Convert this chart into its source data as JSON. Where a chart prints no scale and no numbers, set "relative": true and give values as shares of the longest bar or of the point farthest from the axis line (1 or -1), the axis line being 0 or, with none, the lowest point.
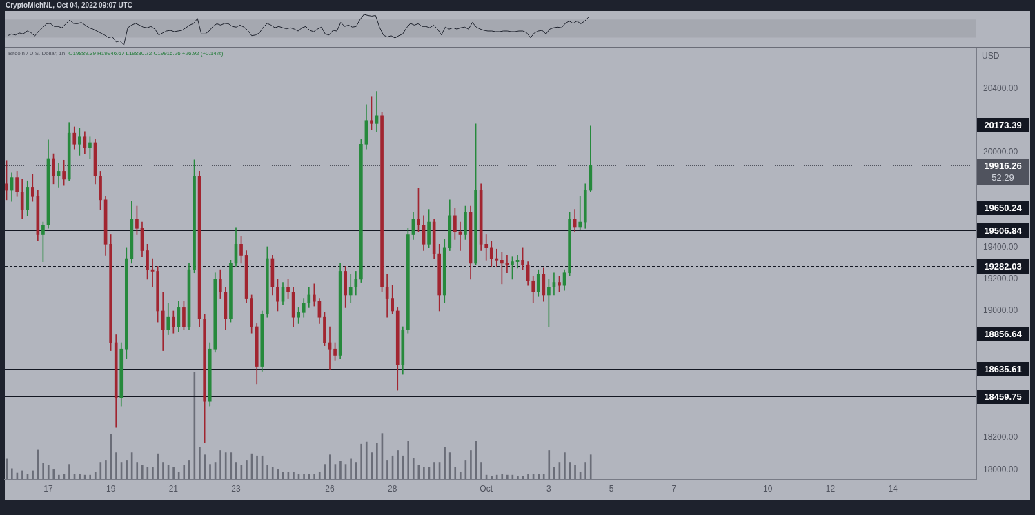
{
  "chart_data": [
    {
      "type": "line",
      "relative": true,
      "color": "#1e222d",
      "categories": [
        null,
        null,
        null,
        null,
        null,
        null,
        null,
        null,
        null,
        null,
        null,
        null,
        null,
        null,
        null,
        null,
        null,
        null,
        null,
        null,
        null,
        null,
        null,
        null,
        null,
        null,
        null,
        null,
        null,
        null,
        null,
        null,
        null,
        null,
        null,
        null,
        null,
        null,
        null,
        null,
        null,
        null,
        null,
        null,
        null,
        null,
        null,
        null,
        null,
        null,
        null,
        null,
        null,
        null,
        null,
        null,
        null,
        null,
        null,
        null,
        null,
        null,
        null,
        null,
        null,
        null,
        null,
        null,
        null,
        null,
        null,
        null,
        null,
        null,
        null,
        null,
        null,
        null,
        null,
        null,
        null,
        null,
        null,
        null,
        null,
        null,
        null,
        null,
        null,
        null,
        null,
        null,
        null,
        null,
        null,
        null,
        null,
        null,
        null,
        null,
        null,
        null,
        null,
        null,
        null,
        null,
        null,
        null,
        null,
        null,
        null,
        null,
        null,
        null,
        null,
        null,
        null,
        null,
        null,
        null,
        null,
        null,
        null,
        null,
        null,
        null,
        null,
        null,
        null,
        null,
        null,
        null,
        null,
        null,
        null,
        null,
        null,
        null,
        null,
        null,
        null,
        null,
        null,
        null,
        null,
        null,
        null,
        null,
        null,
        null,
        null
      ],
      "values": [
        0.36,
        0.41,
        0.38,
        0.44,
        0.41,
        0.5,
        0.45,
        0.35,
        0.5,
        0.6,
        0.72,
        0.73,
        0.64,
        0.64,
        0.6,
        0.72,
        0.83,
        0.73,
        0.72,
        0.76,
        0.68,
        0.6,
        0.56,
        0.5,
        0.44,
        0.38,
        0.3,
        0.33,
        0.17,
        0.2,
        0.08,
        0.6,
        0.68,
        0.73,
        0.68,
        0.62,
        0.6,
        0.64,
        0.56,
        0.38,
        0.44,
        0.5,
        0.52,
        0.48,
        0.5,
        0.52,
        0.6,
        0.68,
        0.73,
        0.88,
        0.41,
        0.41,
        0.5,
        0.64,
        0.72,
        0.68,
        0.73,
        0.72,
        0.64,
        0.62,
        0.68,
        0.62,
        0.52,
        0.36,
        0.38,
        0.44,
        0.62,
        0.73,
        0.68,
        0.6,
        0.64,
        0.6,
        0.57,
        0.6,
        0.56,
        0.5,
        0.6,
        0.64,
        0.52,
        0.48,
        0.56,
        0.62,
        0.41,
        0.38,
        0.52,
        0.5,
        0.76,
        0.64,
        0.68,
        0.62,
        0.64,
        0.85,
        1,
        0.97,
        0.95,
        0.97,
        0.62,
        0.38,
        0.32,
        0.36,
        0.29,
        0.36,
        0.41,
        0.6,
        0.73,
        0.68,
        0.72,
        0.64,
        0.64,
        0.6,
        0.68,
        0.56,
        0.38,
        0.62,
        0.56,
        0.6,
        0.56,
        0.6,
        0.62,
        0.56,
        0.76,
        0.62,
        0.56,
        0.52,
        0.5,
        0.5,
        0.48,
        0.48,
        0.5,
        0.5,
        0.48,
        0.48,
        0.5,
        0.5,
        0.45,
        0.3,
        0.44,
        0.5,
        0.52,
        0.41,
        0.56,
        0.6,
        0.62,
        0.6,
        0.73,
        0.8,
        0.73,
        0.8,
        0.72,
        0.8,
        0.92
      ],
      "bands": [
        {
          "axis": "y",
          "from": 0.3,
          "to": 0.85,
          "color": "#a5a8b0"
        }
      ]
    },
    {
      "type": "candlestick",
      "title": "Bitcoin / U.S. Dollar, 1h",
      "subtitle": "O19889.39 H19946.67 L19880.72 C19916.26 +26.92 (+0.14%)",
      "ylabel": "USD",
      "annotations": [
        "CryptoMichNL, Oct 04, 2022 09:07 UTC"
      ],
      "x": [
        "2022-09-15T16:00",
        "2022-09-15T20:00",
        "2022-09-16T00:00",
        "2022-09-16T04:00",
        "2022-09-16T08:00",
        "2022-09-16T12:00",
        "2022-09-16T16:00",
        "2022-09-16T20:00",
        "2022-09-17T00:00",
        "2022-09-17T04:00",
        "2022-09-17T08:00",
        "2022-09-17T12:00",
        "2022-09-17T16:00",
        "2022-09-17T20:00",
        "2022-09-18T00:00",
        "2022-09-18T04:00",
        "2022-09-18T08:00",
        "2022-09-18T12:00",
        "2022-09-18T16:00",
        "2022-09-18T20:00",
        "2022-09-19T00:00",
        "2022-09-19T04:00",
        "2022-09-19T08:00",
        "2022-09-19T12:00",
        "2022-09-19T16:00",
        "2022-09-19T20:00",
        "2022-09-20T00:00",
        "2022-09-20T04:00",
        "2022-09-20T08:00",
        "2022-09-20T12:00",
        "2022-09-20T16:00",
        "2022-09-20T20:00",
        "2022-09-21T00:00",
        "2022-09-21T04:00",
        "2022-09-21T08:00",
        "2022-09-21T12:00",
        "2022-09-21T16:00",
        "2022-09-21T20:00",
        "2022-09-22T00:00",
        "2022-09-22T04:00",
        "2022-09-22T08:00",
        "2022-09-22T12:00",
        "2022-09-22T16:00",
        "2022-09-22T20:00",
        "2022-09-23T00:00",
        "2022-09-23T04:00",
        "2022-09-23T08:00",
        "2022-09-23T12:00",
        "2022-09-23T16:00",
        "2022-09-23T20:00",
        "2022-09-24T00:00",
        "2022-09-24T04:00",
        "2022-09-24T08:00",
        "2022-09-24T12:00",
        "2022-09-24T16:00",
        "2022-09-24T20:00",
        "2022-09-25T00:00",
        "2022-09-25T04:00",
        "2022-09-25T08:00",
        "2022-09-25T12:00",
        "2022-09-25T16:00",
        "2022-09-25T20:00",
        "2022-09-26T00:00",
        "2022-09-26T04:00",
        "2022-09-26T08:00",
        "2022-09-26T12:00",
        "2022-09-26T16:00",
        "2022-09-26T20:00",
        "2022-09-27T00:00",
        "2022-09-27T04:00",
        "2022-09-27T08:00",
        "2022-09-27T12:00",
        "2022-09-27T16:00",
        "2022-09-27T20:00",
        "2022-09-28T00:00",
        "2022-09-28T04:00",
        "2022-09-28T08:00",
        "2022-09-28T12:00",
        "2022-09-28T16:00",
        "2022-09-28T20:00",
        "2022-09-29T00:00",
        "2022-09-29T04:00",
        "2022-09-29T08:00",
        "2022-09-29T12:00",
        "2022-09-29T16:00",
        "2022-09-29T20:00",
        "2022-09-30T00:00",
        "2022-09-30T04:00",
        "2022-09-30T08:00",
        "2022-09-30T12:00",
        "2022-09-30T16:00",
        "2022-09-30T20:00",
        "2022-10-01T00:00",
        "2022-10-01T04:00",
        "2022-10-01T08:00",
        "2022-10-01T12:00",
        "2022-10-01T16:00",
        "2022-10-01T20:00",
        "2022-10-02T00:00",
        "2022-10-02T04:00",
        "2022-10-02T08:00",
        "2022-10-02T12:00",
        "2022-10-02T16:00",
        "2022-10-02T20:00",
        "2022-10-03T00:00",
        "2022-10-03T04:00",
        "2022-10-03T08:00",
        "2022-10-03T12:00",
        "2022-10-03T16:00",
        "2022-10-03T20:00",
        "2022-10-04T00:00",
        "2022-10-04T04:00",
        "2022-10-04T08:00"
      ],
      "ohlc": [
        [
          19800,
          19948,
          19700,
          19760
        ],
        [
          19760,
          19870,
          19690,
          19840
        ],
        [
          19840,
          19880,
          19720,
          19750
        ],
        [
          19750,
          19830,
          19580,
          19640
        ],
        [
          19640,
          19820,
          19600,
          19780
        ],
        [
          19780,
          19860,
          19690,
          19720
        ],
        [
          19720,
          19760,
          19440,
          19480
        ],
        [
          19480,
          19560,
          19310,
          19540
        ],
        [
          19540,
          20078,
          19520,
          19960
        ],
        [
          19960,
          19990,
          19800,
          19850
        ],
        [
          19850,
          19930,
          19780,
          19880
        ],
        [
          19880,
          19950,
          19790,
          19830
        ],
        [
          19830,
          20187,
          19820,
          20120
        ],
        [
          20120,
          20160,
          20020,
          20050
        ],
        [
          20050,
          20150,
          19980,
          20100
        ],
        [
          20100,
          20130,
          19990,
          20030
        ],
        [
          20030,
          20100,
          19960,
          20060
        ],
        [
          20060,
          20080,
          19800,
          19850
        ],
        [
          19850,
          19880,
          19640,
          19700
        ],
        [
          19700,
          19720,
          19350,
          19420
        ],
        [
          19420,
          19480,
          18750,
          18800
        ],
        [
          18800,
          18850,
          18265,
          18450
        ],
        [
          18450,
          18800,
          18400,
          18760
        ],
        [
          18760,
          19400,
          18700,
          19330
        ],
        [
          19330,
          19690,
          19300,
          19580
        ],
        [
          19580,
          19660,
          19480,
          19520
        ],
        [
          19520,
          19560,
          19340,
          19380
        ],
        [
          19380,
          19420,
          19200,
          19260
        ],
        [
          19260,
          19330,
          19150,
          19250
        ],
        [
          19250,
          19280,
          18930,
          19000
        ],
        [
          19000,
          19120,
          18750,
          18880
        ],
        [
          18880,
          19050,
          18850,
          18960
        ],
        [
          18960,
          19000,
          18860,
          18900
        ],
        [
          18900,
          19060,
          18870,
          19020
        ],
        [
          19020,
          19060,
          18880,
          18900
        ],
        [
          18900,
          19300,
          18880,
          19260
        ],
        [
          19260,
          19952,
          19240,
          19850
        ],
        [
          19850,
          19880,
          18900,
          18950
        ],
        [
          18950,
          18980,
          18170,
          18430
        ],
        [
          18430,
          18800,
          18400,
          18760
        ],
        [
          18760,
          19240,
          18740,
          19200
        ],
        [
          19200,
          19260,
          19080,
          19120
        ],
        [
          19120,
          19150,
          18880,
          18950
        ],
        [
          18950,
          19320,
          18930,
          19300
        ],
        [
          19300,
          19526,
          19280,
          19420
        ],
        [
          19420,
          19470,
          19300,
          19350
        ],
        [
          19350,
          19380,
          19050,
          19080
        ],
        [
          19080,
          19100,
          18860,
          18900
        ],
        [
          18900,
          18920,
          18540,
          18650
        ],
        [
          18650,
          19000,
          18620,
          18980
        ],
        [
          18980,
          19404,
          18960,
          19330
        ],
        [
          19330,
          19350,
          19100,
          19150
        ],
        [
          19150,
          19200,
          19000,
          19060
        ],
        [
          19060,
          19180,
          19040,
          19150
        ],
        [
          19150,
          19200,
          19080,
          19120
        ],
        [
          19120,
          19150,
          18900,
          18960
        ],
        [
          18960,
          19020,
          18920,
          18990
        ],
        [
          18990,
          19080,
          18960,
          19050
        ],
        [
          19050,
          19150,
          19020,
          19100
        ],
        [
          19100,
          19170,
          19030,
          19060
        ],
        [
          19060,
          19080,
          18920,
          18960
        ],
        [
          18960,
          18990,
          18780,
          18800
        ],
        [
          18800,
          18900,
          18630,
          18760
        ],
        [
          18760,
          18800,
          18690,
          18720
        ],
        [
          18720,
          19300,
          18700,
          19250
        ],
        [
          19250,
          19280,
          19020,
          19100
        ],
        [
          19100,
          19230,
          19050,
          19150
        ],
        [
          19150,
          19250,
          19100,
          19200
        ],
        [
          19200,
          20080,
          19180,
          20050
        ],
        [
          20050,
          20300,
          20020,
          20200
        ],
        [
          20200,
          20352,
          20140,
          20180
        ],
        [
          20180,
          20383,
          20130,
          20230
        ],
        [
          20230,
          20250,
          19120,
          19150
        ],
        [
          19150,
          19230,
          18960,
          19080
        ],
        [
          19080,
          19160,
          18980,
          19000
        ],
        [
          19000,
          19020,
          18500,
          18660
        ],
        [
          18660,
          18900,
          18600,
          18880
        ],
        [
          18880,
          19520,
          18860,
          19480
        ],
        [
          19480,
          19620,
          19450,
          19580
        ],
        [
          19580,
          19774,
          19500,
          19540
        ],
        [
          19540,
          19600,
          19380,
          19420
        ],
        [
          19420,
          19640,
          19400,
          19560
        ],
        [
          19560,
          19580,
          19330,
          19360
        ],
        [
          19360,
          19420,
          19000,
          19100
        ],
        [
          19100,
          19450,
          19050,
          19400
        ],
        [
          19400,
          19700,
          19380,
          19600
        ],
        [
          19600,
          19650,
          19450,
          19500
        ],
        [
          19500,
          19560,
          19380,
          19480
        ],
        [
          19480,
          19660,
          19450,
          19620
        ],
        [
          19620,
          19660,
          19200,
          19300
        ],
        [
          19300,
          20178,
          19290,
          19760
        ],
        [
          19760,
          19800,
          19380,
          19420
        ],
        [
          19420,
          19480,
          19320,
          19400
        ],
        [
          19400,
          19440,
          19280,
          19330
        ],
        [
          19330,
          19390,
          19280,
          19320
        ],
        [
          19320,
          19370,
          19170,
          19300
        ],
        [
          19300,
          19350,
          19240,
          19290
        ],
        [
          19290,
          19340,
          19200,
          19310
        ],
        [
          19310,
          19350,
          19270,
          19320
        ],
        [
          19320,
          19400,
          19260,
          19290
        ],
        [
          19290,
          19310,
          19160,
          19190
        ],
        [
          19190,
          19220,
          19050,
          19120
        ],
        [
          19120,
          19260,
          19090,
          19230
        ],
        [
          19230,
          19270,
          19060,
          19100
        ],
        [
          19100,
          19200,
          18900,
          19150
        ],
        [
          19150,
          19240,
          19100,
          19180
        ],
        [
          19180,
          19220,
          19120,
          19160
        ],
        [
          19160,
          19260,
          19130,
          19240
        ],
        [
          19240,
          19620,
          19220,
          19580
        ],
        [
          19580,
          19640,
          19500,
          19530
        ],
        [
          19530,
          19720,
          19510,
          19560
        ],
        [
          19560,
          19800,
          19520,
          19760
        ],
        [
          19760,
          20165,
          19750,
          19916
        ]
      ],
      "colors": [
        "#a12530",
        "#26893c",
        "#a12530",
        "#a12530",
        "#26893c",
        "#a12530",
        "#a12530",
        "#26893c",
        "#26893c",
        "#a12530",
        "#26893c",
        "#a12530",
        "#26893c",
        "#a12530",
        "#26893c",
        "#a12530",
        "#26893c",
        "#a12530",
        "#a12530",
        "#a12530",
        "#a12530",
        "#a12530",
        "#26893c",
        "#26893c",
        "#26893c",
        "#a12530",
        "#a12530",
        "#a12530",
        "#a12530",
        "#a12530",
        "#a12530",
        "#26893c",
        "#a12530",
        "#26893c",
        "#a12530",
        "#26893c",
        "#26893c",
        "#a12530",
        "#a12530",
        "#26893c",
        "#26893c",
        "#a12530",
        "#a12530",
        "#26893c",
        "#26893c",
        "#a12530",
        "#a12530",
        "#a12530",
        "#a12530",
        "#26893c",
        "#26893c",
        "#a12530",
        "#a12530",
        "#26893c",
        "#a12530",
        "#a12530",
        "#26893c",
        "#26893c",
        "#26893c",
        "#a12530",
        "#a12530",
        "#a12530",
        "#a12530",
        "#a12530",
        "#26893c",
        "#a12530",
        "#26893c",
        "#26893c",
        "#26893c",
        "#26893c",
        "#a12530",
        "#26893c",
        "#a12530",
        "#a12530",
        "#a12530",
        "#a12530",
        "#26893c",
        "#26893c",
        "#26893c",
        "#a12530",
        "#a12530",
        "#26893c",
        "#a12530",
        "#a12530",
        "#26893c",
        "#26893c",
        "#a12530",
        "#a12530",
        "#26893c",
        "#a12530",
        "#26893c",
        "#a12530",
        "#a12530",
        "#a12530",
        "#a12530",
        "#a12530",
        "#a12530",
        "#26893c",
        "#26893c",
        "#a12530",
        "#a12530",
        "#a12530",
        "#26893c",
        "#a12530",
        "#26893c",
        "#26893c",
        "#a12530",
        "#26893c",
        "#26893c",
        "#a12530",
        "#26893c",
        "#26893c",
        "#26893c"
      ],
      "xlim": [
        "2022-09-15T14:40",
        "2022-10-16T16:00"
      ],
      "xticks": [
        {
          "value": "2022-09-17",
          "label": "17"
        },
        {
          "value": "2022-09-19",
          "label": "19"
        },
        {
          "value": "2022-09-21",
          "label": "21"
        },
        {
          "value": "2022-09-23",
          "label": "23"
        },
        {
          "value": "2022-09-26",
          "label": "26"
        },
        {
          "value": "2022-09-28",
          "label": "28"
        },
        {
          "value": "2022-10-01",
          "label": "Oct"
        },
        {
          "value": "2022-10-03",
          "label": "3"
        },
        {
          "value": "2022-10-05",
          "label": "5"
        },
        {
          "value": "2022-10-07",
          "label": "7"
        },
        {
          "value": "2022-10-10",
          "label": "10"
        },
        {
          "value": "2022-10-12",
          "label": "12"
        },
        {
          "value": "2022-10-14",
          "label": "14"
        }
      ],
      "ylim": [
        17940,
        20655
      ],
      "yticks": [
        {
          "value": 18000,
          "label": "18000.00"
        },
        {
          "value": 18200,
          "label": "18200.00"
        },
        {
          "value": 19000,
          "label": "19000.00"
        },
        {
          "value": 19200,
          "label": "19200.00"
        },
        {
          "value": 19400,
          "label": "19400.00"
        },
        {
          "value": 20000,
          "label": "20000.00"
        },
        {
          "value": 20400,
          "label": "20400.00"
        }
      ],
      "ref_lines": [
        {
          "axis": "y",
          "value": 20173.39,
          "label": "20173.39",
          "color": "#131722",
          "line_style": "dashed"
        },
        {
          "axis": "y",
          "value": 19916.26,
          "label": "19916.26\n52:29",
          "color": "#50535e",
          "line_style": "dotted"
        },
        {
          "axis": "y",
          "value": 19650.24,
          "label": "19650.24",
          "color": "#131722",
          "line_style": "solid"
        },
        {
          "axis": "y",
          "value": 19506.84,
          "label": "19506.84",
          "color": "#131722",
          "line_style": "solid"
        },
        {
          "axis": "y",
          "value": 19282.03,
          "label": "19282.03",
          "color": "#131722",
          "line_style": "dashed"
        },
        {
          "axis": "y",
          "value": 18856.64,
          "label": "18856.64",
          "color": "#131722",
          "line_style": "dashed"
        },
        {
          "axis": "y",
          "value": 18635.61,
          "label": "18635.61",
          "color": "#131722",
          "line_style": "solid"
        },
        {
          "axis": "y",
          "value": 18459.75,
          "label": "18459.75",
          "color": "#131722",
          "line_style": "solid"
        }
      ]
    },
    {
      "type": "bar",
      "relative": true,
      "color": "#6a6d78",
      "categories": [
        null,
        null,
        null,
        null,
        null,
        null,
        null,
        null,
        null,
        null,
        null,
        null,
        null,
        null,
        null,
        null,
        null,
        null,
        null,
        null,
        null,
        null,
        null,
        null,
        null,
        null,
        null,
        null,
        null,
        null,
        null,
        null,
        null,
        null,
        null,
        null,
        null,
        null,
        null,
        null,
        null,
        null,
        null,
        null,
        null,
        null,
        null,
        null,
        null,
        null,
        null,
        null,
        null,
        null,
        null,
        null,
        null,
        null,
        null,
        null,
        null,
        null,
        null,
        null,
        null,
        null,
        null,
        null,
        null,
        null,
        null,
        null,
        null,
        null,
        null,
        null,
        null,
        null,
        null,
        null,
        null,
        null,
        null,
        null,
        null,
        null,
        null,
        null,
        null,
        null,
        null,
        null,
        null,
        null,
        null,
        null,
        null,
        null,
        null,
        null,
        null,
        null,
        null,
        null,
        null,
        null,
        null,
        null,
        null,
        null,
        null,
        null,
        null
      ],
      "values": [
        0.19,
        0.1,
        0.06,
        0.08,
        0.05,
        0.08,
        0.28,
        0.15,
        0.13,
        0.09,
        0.04,
        0.05,
        0.14,
        0.05,
        0.05,
        0.04,
        0.04,
        0.07,
        0.16,
        0.18,
        0.42,
        0.25,
        0.16,
        0.18,
        0.25,
        0.16,
        0.13,
        0.11,
        0.11,
        0.24,
        0.16,
        0.13,
        0.11,
        0.07,
        0.13,
        0.18,
        1,
        0.3,
        0.23,
        0.14,
        0.16,
        0.27,
        0.25,
        0.25,
        0.16,
        0.13,
        0.18,
        0.24,
        0.22,
        0.22,
        0.13,
        0.11,
        0.09,
        0.07,
        0.07,
        0.07,
        0.05,
        0.05,
        0.05,
        0.05,
        0.07,
        0.14,
        0.23,
        0.14,
        0.17,
        0.14,
        0.19,
        0.16,
        0.33,
        0.35,
        0.25,
        0.34,
        0.43,
        0.18,
        0.22,
        0.27,
        0.22,
        0.36,
        0.2,
        0.13,
        0.11,
        0.11,
        0.16,
        0.16,
        0.3,
        0.25,
        0.11,
        0.07,
        0.18,
        0.27,
        0.36,
        0.16,
        0.04,
        0.03,
        0.04,
        0.05,
        0.04,
        0.04,
        0.03,
        0.03,
        0.05,
        0.05,
        0.05,
        0.05,
        0.27,
        0.11,
        0.16,
        0.25,
        0.16,
        0.13,
        0.07,
        0.16,
        0.23
      ]
    }
  ]
}
